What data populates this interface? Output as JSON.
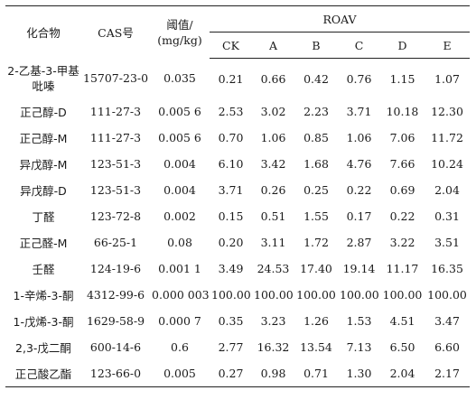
{
  "table": {
    "headers": {
      "compound": "化合物",
      "cas": "CAS号",
      "threshold_line1": "阈值/",
      "threshold_line2": "(mg/kg)",
      "roav": "ROAV",
      "groups": [
        "CK",
        "A",
        "B",
        "C",
        "D",
        "E"
      ]
    },
    "rows": [
      {
        "compound": "2-乙基-3-甲基吡嗪",
        "cas": "15707-23-0",
        "threshold": "0.035",
        "values": [
          "0.21",
          "0.66",
          "0.42",
          "0.76",
          "1.15",
          "1.07"
        ]
      },
      {
        "compound": "正己醇-D",
        "cas": "111-27-3",
        "threshold": "0.005 6",
        "values": [
          "2.53",
          "3.02",
          "2.23",
          "3.71",
          "10.18",
          "12.30"
        ]
      },
      {
        "compound": "正己醇-M",
        "cas": "111-27-3",
        "threshold": "0.005 6",
        "values": [
          "0.70",
          "1.06",
          "0.85",
          "1.06",
          "7.06",
          "11.72"
        ]
      },
      {
        "compound": "异戊醇-M",
        "cas": "123-51-3",
        "threshold": "0.004",
        "values": [
          "6.10",
          "3.42",
          "1.68",
          "4.76",
          "7.66",
          "10.24"
        ]
      },
      {
        "compound": "异戊醇-D",
        "cas": "123-51-3",
        "threshold": "0.004",
        "values": [
          "3.71",
          "0.26",
          "0.25",
          "0.22",
          "0.69",
          "2.04"
        ]
      },
      {
        "compound": "丁醛",
        "cas": "123-72-8",
        "threshold": "0.002",
        "values": [
          "0.15",
          "0.51",
          "1.55",
          "0.17",
          "0.22",
          "0.31"
        ]
      },
      {
        "compound": "正己醛-M",
        "cas": "66-25-1",
        "threshold": "0.08",
        "values": [
          "0.20",
          "3.11",
          "1.72",
          "2.87",
          "3.22",
          "3.51"
        ]
      },
      {
        "compound": "壬醛",
        "cas": "124-19-6",
        "threshold": "0.001 1",
        "values": [
          "3.49",
          "24.53",
          "17.40",
          "19.14",
          "11.17",
          "16.35"
        ]
      },
      {
        "compound": "1-辛烯-3-酮",
        "cas": "4312-99-6",
        "threshold": "0.000 003",
        "values": [
          "100.00",
          "100.00",
          "100.00",
          "100.00",
          "100.00",
          "100.00"
        ]
      },
      {
        "compound": "1-戊烯-3-酮",
        "cas": "1629-58-9",
        "threshold": "0.000 7",
        "values": [
          "0.35",
          "3.23",
          "1.26",
          "1.53",
          "4.51",
          "3.47"
        ]
      },
      {
        "compound": "2,3-戊二酮",
        "cas": "600-14-6",
        "threshold": "0.6",
        "values": [
          "2.77",
          "16.32",
          "13.54",
          "7.13",
          "6.50",
          "6.60"
        ]
      },
      {
        "compound": "正己酸乙酯",
        "cas": "123-66-0",
        "threshold": "0.005",
        "values": [
          "0.27",
          "0.98",
          "0.71",
          "1.30",
          "2.04",
          "2.17"
        ]
      }
    ]
  }
}
